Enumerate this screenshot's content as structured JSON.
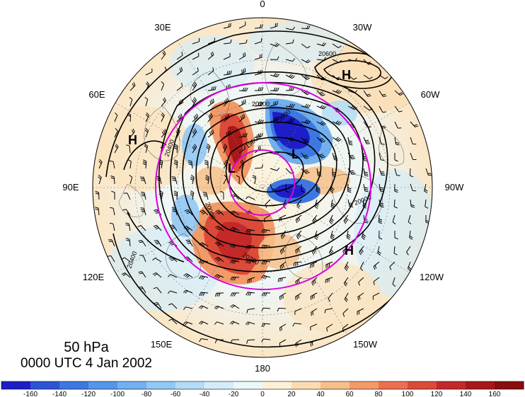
{
  "map": {
    "projection": "north-polar-stereographic",
    "level": "50 hPa",
    "valid_time": "0000 UTC 4 Jan 2002",
    "longitude_labels": [
      "0",
      "30W",
      "60W",
      "90W",
      "120W",
      "150W",
      "180",
      "150E",
      "120E",
      "90E",
      "60E",
      "30E"
    ],
    "pressure_systems": [
      {
        "type": "high",
        "symbol": "H",
        "name": "high-north-atlantic"
      },
      {
        "type": "high",
        "symbol": "H",
        "name": "high-siberia"
      },
      {
        "type": "high",
        "symbol": "H",
        "name": "high-north-pacific"
      },
      {
        "type": "low",
        "symbol": "L",
        "name": "low-greenland"
      },
      {
        "type": "low",
        "symbol": "L",
        "name": "low-arctic"
      }
    ],
    "contour_labels": [
      "20600",
      "20400",
      "20200",
      "20000",
      "19800",
      "19600",
      "20000",
      "20200",
      "20400"
    ]
  },
  "colorbar": {
    "ticks": [
      "-160",
      "-140",
      "-120",
      "-100",
      "-80",
      "-60",
      "-40",
      "-20",
      "0",
      "20",
      "40",
      "60",
      "80",
      "100",
      "120",
      "140",
      "160"
    ],
    "colors": [
      "#1e1ec8",
      "#2e54d6",
      "#3d78e2",
      "#5596ea",
      "#72b0f0",
      "#92c8f4",
      "#b4dcf6",
      "#d4ecf8",
      "#ecf7fa",
      "#fdf2d8",
      "#fbdcb0",
      "#f7c08a",
      "#f29a68",
      "#ea7050",
      "#dc4a38",
      "#c42828",
      "#a81818",
      "#8a0e0e"
    ]
  },
  "colors": {
    "circle": "#dd00dd",
    "contour": "#000000",
    "coast": "#666666"
  }
}
